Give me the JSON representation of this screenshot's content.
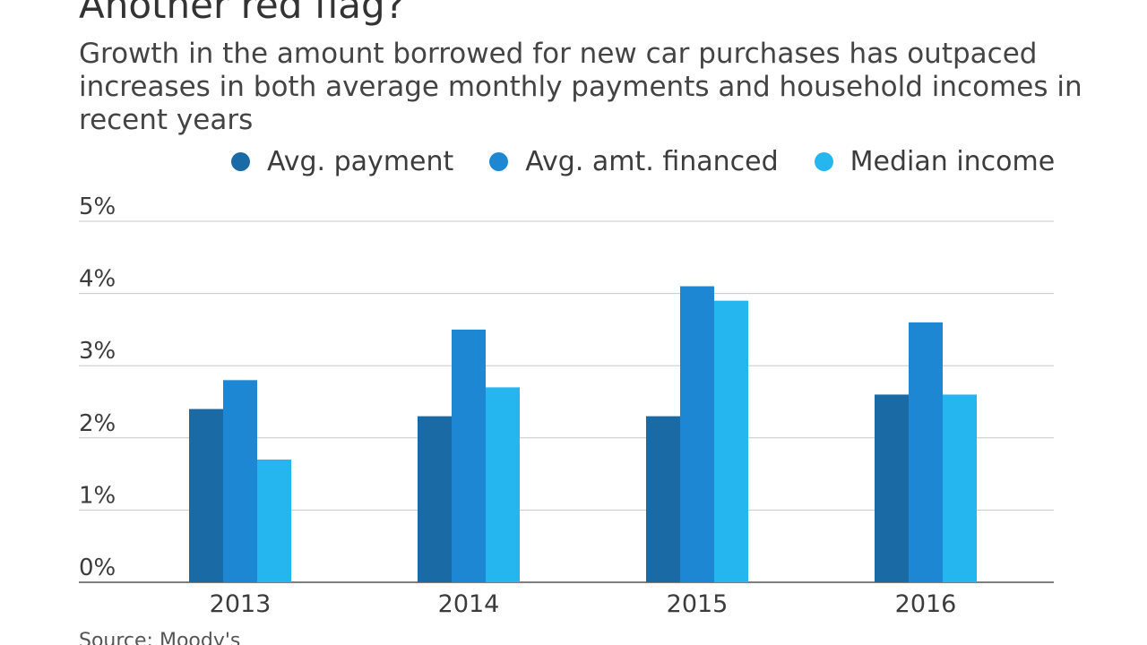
{
  "chart_data": {
    "type": "bar",
    "title": "Another red flag?",
    "subtitle": "Growth in the amount borrowed for new car purchases has outpaced increases in both average monthly payments and household incomes in recent years",
    "categories": [
      "2013",
      "2014",
      "2015",
      "2016"
    ],
    "series": [
      {
        "name": "Avg. payment",
        "color": "#1a6aa6",
        "values": [
          2.4,
          2.3,
          2.3,
          2.6
        ]
      },
      {
        "name": "Avg. amt. financed",
        "color": "#1d87d3",
        "values": [
          2.8,
          3.5,
          4.1,
          3.6
        ]
      },
      {
        "name": "Median income",
        "color": "#26b6ef",
        "values": [
          1.7,
          2.7,
          3.9,
          2.6
        ]
      }
    ],
    "yticks": [
      0,
      1,
      2,
      3,
      4,
      5
    ],
    "ytick_labels": [
      "0%",
      "1%",
      "2%",
      "3%",
      "4%",
      "5%"
    ],
    "ylim": [
      0,
      5
    ],
    "xlabel": "",
    "ylabel": "",
    "legend_position": "top",
    "grid": true,
    "source": "Source: Moody's"
  }
}
